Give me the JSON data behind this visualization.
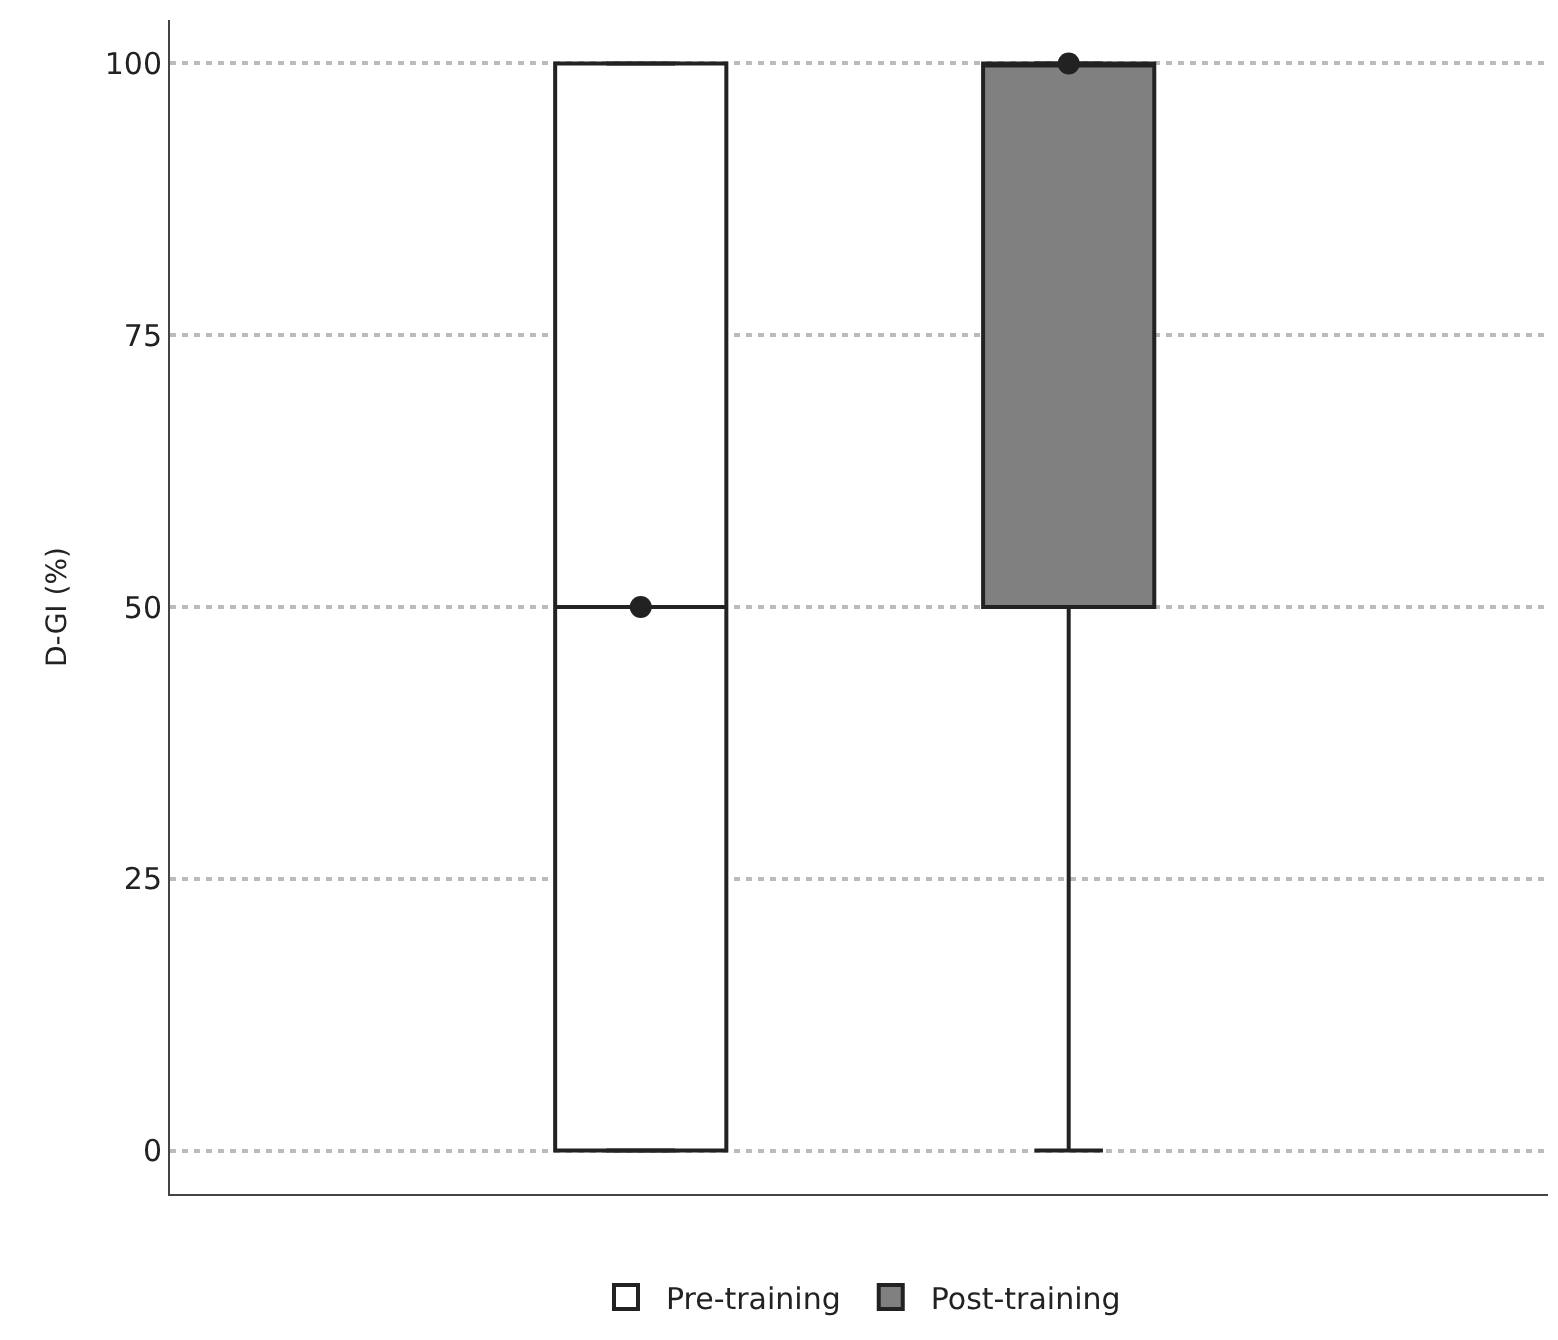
{
  "chart_data": {
    "type": "box",
    "ylabel": "D-GI (%)",
    "categories": [
      null,
      null
    ],
    "series": [
      {
        "name": "Pre-training",
        "color": "#ffffff",
        "boxes": [
          {
            "low": 0,
            "q1": 0,
            "median": 50,
            "q3": 100,
            "high": 100,
            "mean": 50
          },
          null
        ]
      },
      {
        "name": "Post-training",
        "color": "#808080",
        "boxes": [
          null,
          {
            "low": 0,
            "q1": 50,
            "median": 100,
            "q3": 100,
            "high": 100,
            "mean": 100
          }
        ]
      }
    ],
    "ylim": [
      -4,
      104
    ],
    "yticks": [
      0,
      25,
      50,
      75,
      100
    ],
    "grid": "y",
    "legend": "bottom",
    "marker": "circle"
  }
}
